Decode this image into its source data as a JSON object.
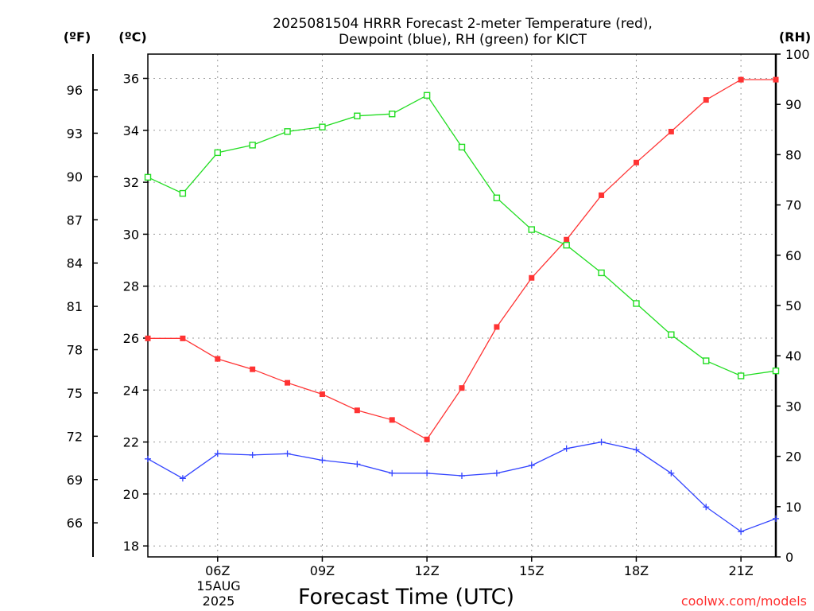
{
  "chart_data": {
    "type": "line",
    "title_line1": "2025081504 HRRR Forecast 2-meter Temperature (red),",
    "title_line2": "Dewpoint (blue), RH (green) for KICT",
    "xlabel": "Forecast Time (UTC)",
    "credit": "coolwx.com/models",
    "date_label_1": "15AUG",
    "date_label_2": "2025",
    "unit_f": "(ºF)",
    "unit_c": "(ºC)",
    "unit_rh": "(RH)",
    "x_hours": [
      4,
      5,
      6,
      7,
      8,
      9,
      10,
      11,
      12,
      13,
      14,
      15,
      16,
      17,
      18,
      19,
      20,
      21,
      22
    ],
    "xlim": [
      4,
      22
    ],
    "x_tick_hours": [
      6,
      9,
      12,
      15,
      18,
      21
    ],
    "x_tick_labels": [
      "06Z",
      "09Z",
      "12Z",
      "15Z",
      "18Z",
      "21Z"
    ],
    "ylim_c": [
      17.6,
      37.0
    ],
    "y_ticks_c": [
      18,
      20,
      22,
      24,
      26,
      28,
      30,
      32,
      34,
      36
    ],
    "y_ticks_f": [
      66,
      69,
      72,
      75,
      78,
      81,
      84,
      87,
      90,
      93,
      96
    ],
    "ylim_rh": [
      0,
      100
    ],
    "y_ticks_rh": [
      0,
      10,
      20,
      30,
      40,
      50,
      60,
      70,
      80,
      90,
      100
    ],
    "grid": true,
    "series": [
      {
        "name": "Temperature",
        "axis": "celsius",
        "color": "#ff3333",
        "marker": "filled-square",
        "values": [
          25.99,
          25.99,
          25.2,
          24.8,
          24.28,
          23.84,
          23.22,
          22.85,
          22.1,
          24.08,
          26.43,
          28.32,
          29.79,
          31.5,
          32.76,
          33.95,
          35.17,
          35.95,
          35.95
        ]
      },
      {
        "name": "Dewpoint",
        "axis": "celsius",
        "color": "#3344ff",
        "marker": "plus",
        "values": [
          21.35,
          20.6,
          21.55,
          21.5,
          21.55,
          21.3,
          21.15,
          20.8,
          20.8,
          20.7,
          20.8,
          21.1,
          21.75,
          22.0,
          21.7,
          20.8,
          19.5,
          18.55,
          19.05
        ]
      },
      {
        "name": "RH",
        "axis": "rh",
        "color": "#22dd22",
        "marker": "open-square",
        "values": [
          75.5,
          72.3,
          80.4,
          81.9,
          84.6,
          85.5,
          87.7,
          88.1,
          91.8,
          81.5,
          71.4,
          65.1,
          62.0,
          56.5,
          50.4,
          44.2,
          39.0,
          36.0,
          37.0
        ]
      }
    ]
  }
}
